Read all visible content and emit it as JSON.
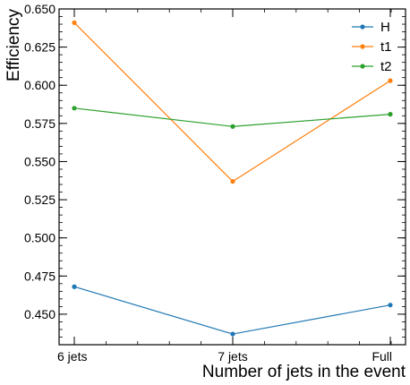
{
  "chart_data": {
    "type": "line",
    "categories": [
      "6 jets",
      "7 jets",
      "Full"
    ],
    "series": [
      {
        "name": "H",
        "values": [
          0.468,
          0.437,
          0.456
        ],
        "color": "#1f77b4"
      },
      {
        "name": "t1",
        "values": [
          0.641,
          0.537,
          0.603
        ],
        "color": "#ff7f0e"
      },
      {
        "name": "t2",
        "values": [
          0.585,
          0.573,
          0.581
        ],
        "color": "#2ca02c"
      }
    ],
    "xlabel": "Number of jets in the event",
    "ylabel": "Efficiency",
    "ylim": [
      0.43,
      0.65
    ],
    "yticks": [
      "0.450",
      "0.475",
      "0.500",
      "0.525",
      "0.550",
      "0.575",
      "0.600",
      "0.625",
      "0.650"
    ],
    "grid": false,
    "legend_position": "top-right"
  }
}
